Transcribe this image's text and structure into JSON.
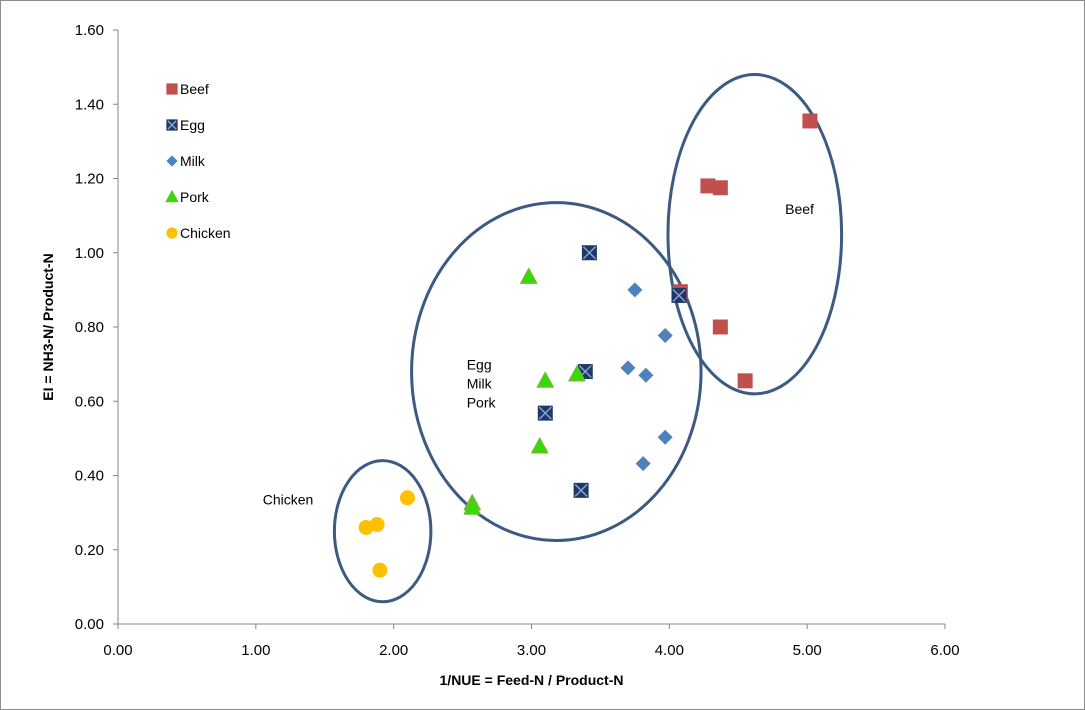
{
  "chart_data": {
    "type": "scatter",
    "title": "",
    "xlabel": "1/NUE = Feed-N / Product-N",
    "ylabel": "EI = NH3-N/ Product-N",
    "xlim": [
      0,
      6
    ],
    "ylim": [
      0,
      1.6
    ],
    "x_ticks": [
      "0.00",
      "1.00",
      "2.00",
      "3.00",
      "4.00",
      "5.00",
      "6.00"
    ],
    "y_ticks": [
      "0.00",
      "0.20",
      "0.40",
      "0.60",
      "0.80",
      "1.00",
      "1.20",
      "1.40",
      "1.60"
    ],
    "grid": false,
    "legend_position": "top-left",
    "series": [
      {
        "name": "Beef",
        "marker": "square",
        "color": "#c0504d",
        "points": [
          [
            5.02,
            1.355
          ],
          [
            4.28,
            1.18
          ],
          [
            4.37,
            1.175
          ],
          [
            4.08,
            0.895
          ],
          [
            4.37,
            0.8
          ],
          [
            4.55,
            0.655
          ]
        ]
      },
      {
        "name": "Egg",
        "marker": "square-x",
        "color": "#1f3864",
        "points": [
          [
            3.42,
            1.0
          ],
          [
            4.07,
            0.885
          ],
          [
            3.39,
            0.68
          ],
          [
            3.1,
            0.568
          ],
          [
            3.36,
            0.36
          ]
        ]
      },
      {
        "name": "Milk",
        "marker": "diamond",
        "color": "#4f81bd",
        "points": [
          [
            3.75,
            0.9
          ],
          [
            3.97,
            0.777
          ],
          [
            3.7,
            0.69
          ],
          [
            3.83,
            0.67
          ],
          [
            3.97,
            0.503
          ],
          [
            3.81,
            0.432
          ]
        ]
      },
      {
        "name": "Pork",
        "marker": "triangle",
        "color": "#33dd00",
        "points": [
          [
            2.98,
            0.935
          ],
          [
            3.1,
            0.655
          ],
          [
            3.33,
            0.672
          ],
          [
            3.06,
            0.478
          ],
          [
            2.57,
            0.325
          ],
          [
            2.57,
            0.313
          ]
        ]
      },
      {
        "name": "Chicken",
        "marker": "circle",
        "color": "#ffc000",
        "points": [
          [
            2.1,
            0.34
          ],
          [
            1.88,
            0.268
          ],
          [
            1.8,
            0.26
          ],
          [
            1.9,
            0.145
          ]
        ]
      }
    ],
    "annotations": [
      {
        "id": "beef",
        "lines": [
          "Beef"
        ],
        "x": 4.84,
        "y": 1.105
      },
      {
        "id": "egg-milk-pork",
        "lines": [
          "Egg",
          "Milk",
          "Pork"
        ],
        "x": 2.53,
        "y": 0.685
      },
      {
        "id": "chicken",
        "lines": [
          "Chicken"
        ],
        "x": 1.05,
        "y": 0.322
      }
    ],
    "ellipses": [
      {
        "group": "beef",
        "cx": 4.62,
        "cy": 1.05,
        "rx": 0.63,
        "ry": 0.43
      },
      {
        "group": "egg-milk-pork",
        "cx": 3.18,
        "cy": 0.68,
        "rx": 1.05,
        "ry": 0.455
      },
      {
        "group": "chicken",
        "cx": 1.92,
        "cy": 0.25,
        "rx": 0.35,
        "ry": 0.19
      }
    ]
  }
}
